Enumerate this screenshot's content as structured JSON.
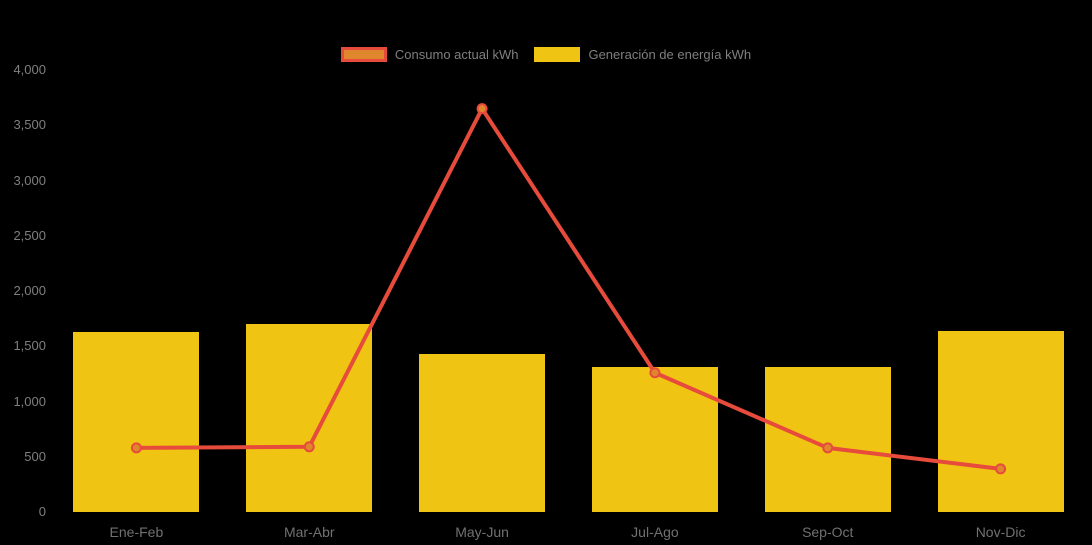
{
  "chart_data": {
    "type": "bar+line",
    "title": "",
    "xlabel": "",
    "ylabel": "",
    "categories": [
      "Ene-Feb",
      "Mar-Abr",
      "May-Jun",
      "Jul-Ago",
      "Sep-Oct",
      "Nov-Dic"
    ],
    "series": [
      {
        "name": "Consumo actual kWh",
        "type": "line",
        "values": [
          580,
          590,
          3650,
          1260,
          580,
          390
        ],
        "color": "#E64B3C",
        "marker_color": "#E0862C"
      },
      {
        "name": "Generación de energía kWh",
        "type": "bar",
        "values": [
          1630,
          1700,
          1430,
          1310,
          1310,
          1640
        ],
        "color": "#F0C412"
      }
    ],
    "ylim": [
      0,
      4000
    ],
    "yticks": [
      {
        "value": 0,
        "label": "0"
      },
      {
        "value": 500,
        "label": "500"
      },
      {
        "value": 1000,
        "label": "1,000"
      },
      {
        "value": 1500,
        "label": "1,500"
      },
      {
        "value": 2000,
        "label": "2,000"
      },
      {
        "value": 2500,
        "label": "2,500"
      },
      {
        "value": 3000,
        "label": "3,000"
      },
      {
        "value": 3500,
        "label": "3,500"
      },
      {
        "value": 4000,
        "label": "4,000"
      }
    ],
    "grid": false,
    "legend_position": "top-center",
    "background": "#000000",
    "text_color": "#7F7F7F"
  }
}
